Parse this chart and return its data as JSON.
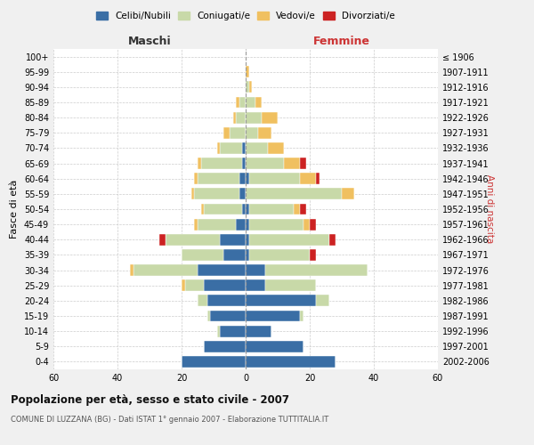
{
  "age_groups": [
    "0-4",
    "5-9",
    "10-14",
    "15-19",
    "20-24",
    "25-29",
    "30-34",
    "35-39",
    "40-44",
    "45-49",
    "50-54",
    "55-59",
    "60-64",
    "65-69",
    "70-74",
    "75-79",
    "80-84",
    "85-89",
    "90-94",
    "95-99",
    "100+"
  ],
  "birth_years": [
    "2002-2006",
    "1997-2001",
    "1992-1996",
    "1987-1991",
    "1982-1986",
    "1977-1981",
    "1972-1976",
    "1967-1971",
    "1962-1966",
    "1957-1961",
    "1952-1956",
    "1947-1951",
    "1942-1946",
    "1937-1941",
    "1932-1936",
    "1927-1931",
    "1922-1926",
    "1917-1921",
    "1912-1916",
    "1907-1911",
    "≤ 1906"
  ],
  "colors": {
    "celibe": "#3a6ea5",
    "coniugato": "#c8d9a8",
    "vedovo": "#f0c060",
    "divorziato": "#cc2222"
  },
  "maschi": {
    "celibe": [
      20,
      13,
      8,
      11,
      12,
      13,
      15,
      7,
      8,
      3,
      1,
      2,
      2,
      1,
      1,
      0,
      0,
      0,
      0,
      0,
      0
    ],
    "coniugato": [
      0,
      0,
      1,
      1,
      3,
      6,
      20,
      13,
      17,
      12,
      12,
      14,
      13,
      13,
      7,
      5,
      3,
      2,
      0,
      0,
      0
    ],
    "vedovo": [
      0,
      0,
      0,
      0,
      0,
      1,
      1,
      0,
      0,
      1,
      1,
      1,
      1,
      1,
      1,
      2,
      1,
      1,
      0,
      0,
      0
    ],
    "divorziato": [
      0,
      0,
      0,
      0,
      0,
      0,
      0,
      0,
      2,
      0,
      0,
      0,
      0,
      0,
      0,
      0,
      0,
      0,
      0,
      0,
      0
    ]
  },
  "femmine": {
    "nubile": [
      28,
      18,
      8,
      17,
      22,
      6,
      6,
      1,
      1,
      1,
      1,
      0,
      1,
      0,
      0,
      0,
      0,
      0,
      0,
      0,
      0
    ],
    "coniugata": [
      0,
      0,
      0,
      1,
      4,
      16,
      32,
      19,
      25,
      17,
      14,
      30,
      16,
      12,
      7,
      4,
      5,
      3,
      1,
      0,
      0
    ],
    "vedova": [
      0,
      0,
      0,
      0,
      0,
      0,
      0,
      0,
      0,
      2,
      2,
      4,
      5,
      5,
      5,
      4,
      5,
      2,
      1,
      1,
      0
    ],
    "divorziata": [
      0,
      0,
      0,
      0,
      0,
      0,
      0,
      2,
      2,
      2,
      2,
      0,
      1,
      2,
      0,
      0,
      0,
      0,
      0,
      0,
      0
    ]
  },
  "xlim": 60,
  "title": "Popolazione per età, sesso e stato civile - 2007",
  "subtitle": "COMUNE DI LUZZANA (BG) - Dati ISTAT 1° gennaio 2007 - Elaborazione TUTTITALIA.IT",
  "ylabel_left": "Fasce di età",
  "ylabel_right": "Anni di nascita",
  "xlabel_maschi": "Maschi",
  "xlabel_femmine": "Femmine",
  "legend_labels": [
    "Celibi/Nubili",
    "Coniugati/e",
    "Vedovi/e",
    "Divorziati/e"
  ],
  "bg_color": "#f0f0f0",
  "plot_bg": "#ffffff",
  "grid_color": "#cccccc"
}
